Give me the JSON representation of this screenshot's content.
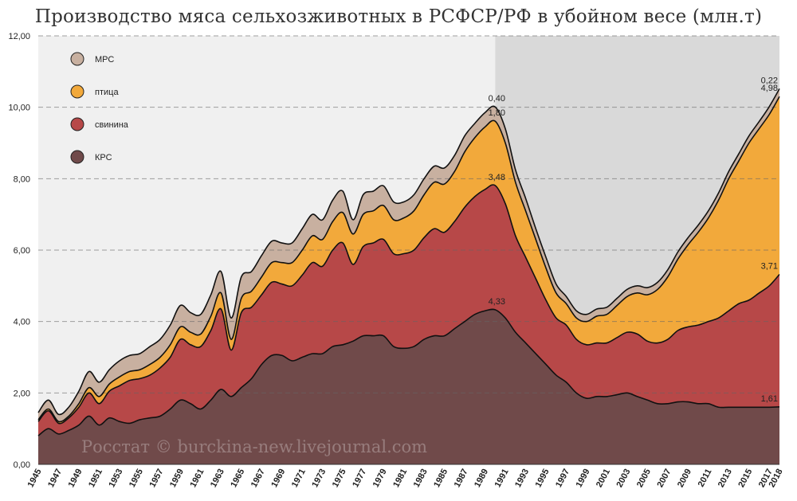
{
  "chart_data": {
    "type": "area",
    "stacked": true,
    "title": "Производство мяса сельхозживотных в РСФСР/РФ в убойном весе (млн.т)",
    "ylim": [
      0,
      12
    ],
    "y_ticks": [
      "0,00",
      "2,00",
      "4,00",
      "6,00",
      "8,00",
      "10,00",
      "12,00"
    ],
    "x_tick_labels": [
      "1945",
      "1947",
      "1949",
      "1951",
      "1953",
      "1955",
      "1957",
      "1959",
      "1961",
      "1963",
      "1965",
      "1967",
      "1969",
      "1971",
      "1973",
      "1975",
      "1977",
      "1979",
      "1981",
      "1983",
      "1985",
      "1987",
      "1989",
      "1991",
      "1993",
      "1995",
      "1997",
      "1999",
      "2001",
      "2003",
      "2005",
      "2007",
      "2009",
      "2011",
      "2013",
      "2015",
      "2017",
      "2018"
    ],
    "grid": "horizontal dashed",
    "legend_position": "top-left",
    "shaded_region": {
      "from": 1990,
      "to": 2018
    },
    "x": [
      1945,
      1946,
      1947,
      1948,
      1949,
      1950,
      1951,
      1952,
      1953,
      1954,
      1955,
      1956,
      1957,
      1958,
      1959,
      1960,
      1961,
      1962,
      1963,
      1964,
      1965,
      1966,
      1967,
      1968,
      1969,
      1970,
      1971,
      1972,
      1973,
      1974,
      1975,
      1976,
      1977,
      1978,
      1979,
      1980,
      1981,
      1982,
      1983,
      1984,
      1985,
      1986,
      1987,
      1988,
      1989,
      1990,
      1991,
      1992,
      1993,
      1994,
      1995,
      1996,
      1997,
      1998,
      1999,
      2000,
      2001,
      2002,
      2003,
      2004,
      2005,
      2006,
      2007,
      2008,
      2009,
      2010,
      2011,
      2012,
      2013,
      2014,
      2015,
      2016,
      2017,
      2018
    ],
    "series": [
      {
        "name": "КРС",
        "color": "#704a4a",
        "values": [
          0.8,
          1.0,
          0.85,
          0.95,
          1.1,
          1.35,
          1.1,
          1.3,
          1.2,
          1.15,
          1.25,
          1.3,
          1.35,
          1.55,
          1.8,
          1.7,
          1.55,
          1.8,
          2.1,
          1.9,
          2.15,
          2.4,
          2.8,
          3.05,
          3.05,
          2.9,
          3.0,
          3.1,
          3.1,
          3.3,
          3.35,
          3.45,
          3.6,
          3.6,
          3.6,
          3.3,
          3.25,
          3.3,
          3.5,
          3.6,
          3.6,
          3.8,
          4.0,
          4.2,
          4.3,
          4.33,
          4.1,
          3.7,
          3.4,
          3.1,
          2.8,
          2.5,
          2.3,
          2.0,
          1.85,
          1.9,
          1.9,
          1.95,
          2.0,
          1.9,
          1.8,
          1.7,
          1.7,
          1.75,
          1.75,
          1.7,
          1.7,
          1.6,
          1.6,
          1.6,
          1.6,
          1.6,
          1.6,
          1.61
        ]
      },
      {
        "name": "свинина",
        "color": "#b74848",
        "values": [
          0.4,
          0.5,
          0.3,
          0.35,
          0.5,
          0.65,
          0.6,
          0.75,
          1.0,
          1.2,
          1.15,
          1.2,
          1.35,
          1.45,
          1.7,
          1.65,
          1.75,
          1.95,
          2.25,
          1.3,
          2.1,
          2.0,
          1.95,
          2.05,
          2.0,
          2.1,
          2.3,
          2.55,
          2.45,
          2.7,
          2.85,
          2.15,
          2.5,
          2.6,
          2.7,
          2.6,
          2.65,
          2.7,
          2.85,
          3.0,
          2.9,
          3.0,
          3.2,
          3.3,
          3.4,
          3.48,
          3.2,
          2.7,
          2.4,
          2.1,
          1.8,
          1.6,
          1.6,
          1.5,
          1.5,
          1.5,
          1.5,
          1.6,
          1.7,
          1.75,
          1.65,
          1.7,
          1.8,
          2.0,
          2.1,
          2.2,
          2.3,
          2.5,
          2.7,
          2.9,
          3.0,
          3.2,
          3.4,
          3.71
        ]
      },
      {
        "name": "птица",
        "color": "#f2a93b",
        "values": [
          0.05,
          0.05,
          0.05,
          0.05,
          0.1,
          0.15,
          0.2,
          0.2,
          0.25,
          0.25,
          0.25,
          0.3,
          0.3,
          0.35,
          0.35,
          0.35,
          0.35,
          0.4,
          0.45,
          0.3,
          0.4,
          0.45,
          0.5,
          0.55,
          0.6,
          0.65,
          0.7,
          0.75,
          0.75,
          0.8,
          0.85,
          0.85,
          0.9,
          0.9,
          0.95,
          0.95,
          1.0,
          1.1,
          1.2,
          1.3,
          1.35,
          1.4,
          1.55,
          1.65,
          1.75,
          1.8,
          1.7,
          1.5,
          1.3,
          1.1,
          0.9,
          0.7,
          0.6,
          0.6,
          0.65,
          0.75,
          0.8,
          0.9,
          1.0,
          1.15,
          1.3,
          1.5,
          1.75,
          2.0,
          2.3,
          2.6,
          2.9,
          3.3,
          3.7,
          4.0,
          4.4,
          4.6,
          4.8,
          4.98
        ]
      },
      {
        "name": "МРС",
        "color": "#c8b0a0",
        "values": [
          0.2,
          0.25,
          0.2,
          0.25,
          0.35,
          0.45,
          0.4,
          0.4,
          0.45,
          0.45,
          0.45,
          0.5,
          0.5,
          0.55,
          0.6,
          0.55,
          0.55,
          0.6,
          0.6,
          0.6,
          0.6,
          0.55,
          0.6,
          0.6,
          0.55,
          0.55,
          0.6,
          0.6,
          0.55,
          0.6,
          0.6,
          0.4,
          0.55,
          0.55,
          0.55,
          0.5,
          0.45,
          0.45,
          0.45,
          0.45,
          0.45,
          0.45,
          0.45,
          0.4,
          0.4,
          0.4,
          0.4,
          0.35,
          0.35,
          0.3,
          0.3,
          0.25,
          0.2,
          0.2,
          0.2,
          0.2,
          0.2,
          0.2,
          0.2,
          0.2,
          0.2,
          0.2,
          0.2,
          0.2,
          0.2,
          0.2,
          0.2,
          0.2,
          0.2,
          0.2,
          0.2,
          0.2,
          0.22,
          0.22
        ]
      }
    ],
    "annotations": [
      {
        "x": 1990,
        "series": "МРС",
        "text": "0,40"
      },
      {
        "x": 1990,
        "series": "птица",
        "text": "1,80"
      },
      {
        "x": 1990,
        "series": "свинина",
        "text": "3,48"
      },
      {
        "x": 1990,
        "series": "КРС",
        "text": "4,33"
      },
      {
        "x": 2018,
        "series": "МРС",
        "text": "0,22"
      },
      {
        "x": 2018,
        "series": "птица",
        "text": "4,98"
      },
      {
        "x": 2018,
        "series": "свинина",
        "text": "3,71"
      },
      {
        "x": 2018,
        "series": "КРС",
        "text": "1,61"
      }
    ],
    "legend": [
      {
        "label": "МРС",
        "color": "#c8b0a0"
      },
      {
        "label": "птица",
        "color": "#f2a93b"
      },
      {
        "label": "свинина",
        "color": "#b74848"
      },
      {
        "label": "КРС",
        "color": "#704a4a"
      }
    ],
    "watermark": "Росстат © burckina-new.livejournal.com"
  }
}
